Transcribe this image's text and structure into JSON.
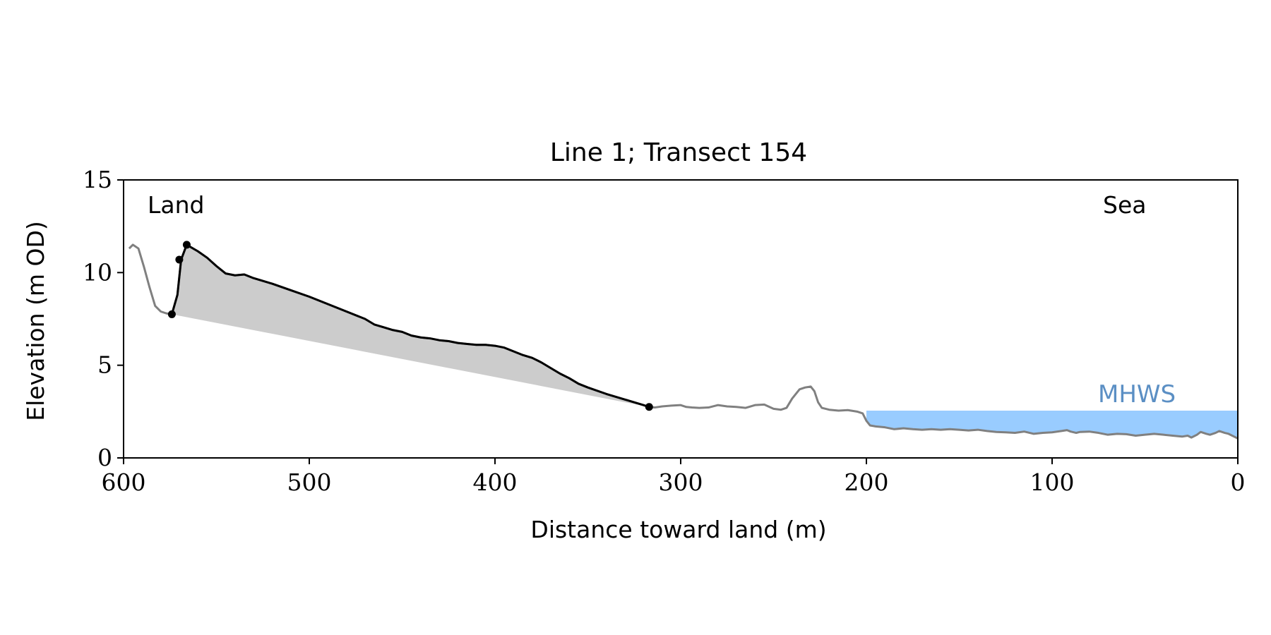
{
  "chart_data": {
    "type": "line",
    "title": "Line 1; Transect 154",
    "xlabel": "Distance toward land (m)",
    "ylabel": "Elevation (m OD)",
    "xlim": [
      600,
      0
    ],
    "ylim": [
      0,
      15
    ],
    "x_reversed": true,
    "xticks": [
      600,
      500,
      400,
      300,
      200,
      100,
      0
    ],
    "yticks": [
      0,
      5,
      10,
      15
    ],
    "grid": false,
    "annotations": {
      "land": "Land",
      "sea": "Sea",
      "mhws": "MHWS"
    },
    "mhws_level": 2.55,
    "mhws_x_range": [
      200,
      0
    ],
    "colors": {
      "profile": "#808080",
      "dune": "#000000",
      "fill": "#cccccc",
      "water": "#99ccff",
      "mhws_text": "#5b8fc4"
    },
    "series": [
      {
        "role": "full_profile",
        "x": [
          597,
          595,
          592,
          589,
          586,
          583,
          580,
          577,
          574,
          571,
          569,
          566,
          560,
          555,
          550,
          545,
          540,
          535,
          530,
          520,
          510,
          500,
          490,
          480,
          470,
          465,
          460,
          455,
          450,
          445,
          440,
          435,
          430,
          425,
          420,
          415,
          410,
          405,
          400,
          395,
          390,
          385,
          380,
          375,
          370,
          365,
          360,
          355,
          350,
          340,
          330,
          320,
          317,
          314,
          310,
          305,
          300,
          297,
          294,
          290,
          285,
          280,
          275,
          270,
          265,
          260,
          255,
          250,
          246,
          243,
          240,
          236,
          233,
          230,
          228,
          226,
          224,
          220,
          215,
          210,
          205,
          202,
          200,
          198,
          195,
          190,
          185,
          180,
          175,
          170,
          165,
          160,
          155,
          150,
          145,
          140,
          135,
          130,
          125,
          120,
          115,
          110,
          105,
          100,
          95,
          92,
          90,
          87,
          85,
          80,
          75,
          70,
          65,
          60,
          55,
          50,
          45,
          40,
          35,
          30,
          27,
          25,
          22,
          20,
          17,
          15,
          12,
          10,
          7,
          5,
          2,
          0
        ],
        "y": [
          11.3,
          11.5,
          11.3,
          10.3,
          9.2,
          8.2,
          7.9,
          7.8,
          7.75,
          8.8,
          10.7,
          11.5,
          11.15,
          10.8,
          10.35,
          9.95,
          9.85,
          9.9,
          9.7,
          9.4,
          9.05,
          8.7,
          8.3,
          7.9,
          7.5,
          7.2,
          7.05,
          6.9,
          6.8,
          6.6,
          6.5,
          6.45,
          6.35,
          6.3,
          6.2,
          6.15,
          6.1,
          6.1,
          6.05,
          5.95,
          5.75,
          5.55,
          5.4,
          5.15,
          4.85,
          4.55,
          4.3,
          4.0,
          3.8,
          3.45,
          3.15,
          2.85,
          2.75,
          2.72,
          2.78,
          2.82,
          2.85,
          2.75,
          2.72,
          2.7,
          2.72,
          2.85,
          2.78,
          2.75,
          2.7,
          2.85,
          2.88,
          2.65,
          2.6,
          2.7,
          3.2,
          3.7,
          3.8,
          3.85,
          3.6,
          3.0,
          2.7,
          2.6,
          2.55,
          2.58,
          2.5,
          2.4,
          2.0,
          1.75,
          1.7,
          1.65,
          1.55,
          1.6,
          1.55,
          1.52,
          1.55,
          1.52,
          1.55,
          1.52,
          1.48,
          1.52,
          1.45,
          1.4,
          1.38,
          1.35,
          1.42,
          1.3,
          1.35,
          1.38,
          1.45,
          1.5,
          1.42,
          1.35,
          1.4,
          1.42,
          1.35,
          1.25,
          1.3,
          1.28,
          1.2,
          1.25,
          1.3,
          1.25,
          1.2,
          1.15,
          1.2,
          1.1,
          1.25,
          1.4,
          1.3,
          1.25,
          1.35,
          1.45,
          1.35,
          1.3,
          1.15,
          1.05
        ]
      },
      {
        "role": "dune_profile",
        "x": [
          574,
          571,
          569,
          566,
          560,
          555,
          550,
          545,
          540,
          535,
          530,
          520,
          510,
          500,
          490,
          480,
          470,
          465,
          460,
          455,
          450,
          445,
          440,
          435,
          430,
          425,
          420,
          415,
          410,
          405,
          400,
          395,
          390,
          385,
          380,
          375,
          370,
          365,
          360,
          355,
          350,
          340,
          330,
          320,
          317
        ],
        "y": [
          7.75,
          8.8,
          10.7,
          11.5,
          11.15,
          10.8,
          10.35,
          9.95,
          9.85,
          9.9,
          9.7,
          9.4,
          9.05,
          8.7,
          8.3,
          7.9,
          7.5,
          7.2,
          7.05,
          6.9,
          6.8,
          6.6,
          6.5,
          6.45,
          6.35,
          6.3,
          6.2,
          6.15,
          6.1,
          6.1,
          6.05,
          5.95,
          5.75,
          5.55,
          5.4,
          5.15,
          4.85,
          4.55,
          4.3,
          4.0,
          3.8,
          3.45,
          3.15,
          2.85,
          2.75
        ]
      }
    ],
    "markers": {
      "x": [
        574,
        570,
        566,
        317
      ],
      "y": [
        7.75,
        10.7,
        11.5,
        2.75
      ]
    }
  }
}
